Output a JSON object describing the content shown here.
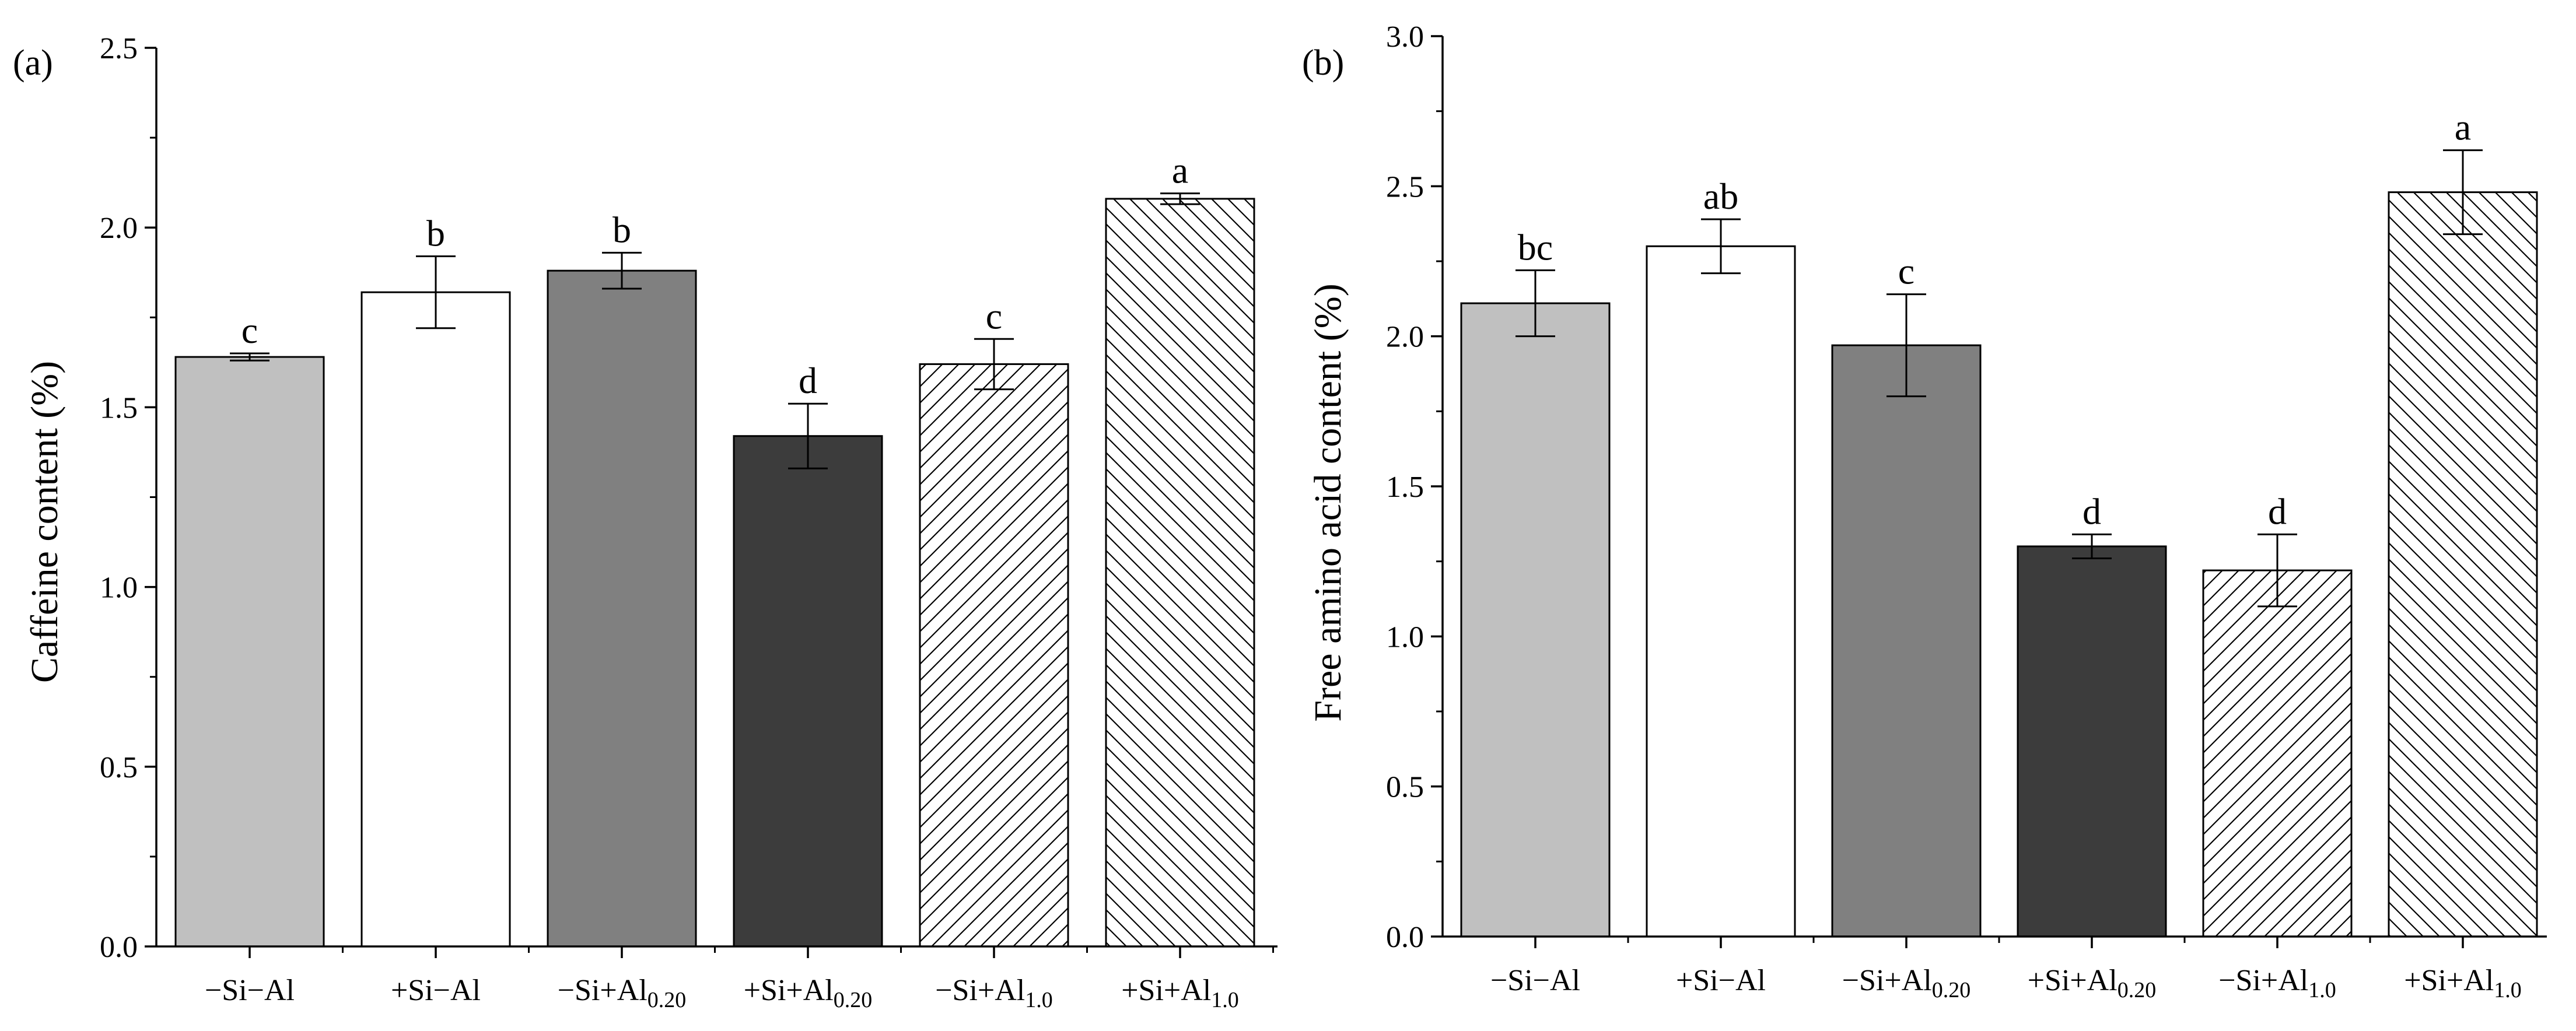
{
  "chart_data": [
    {
      "type": "bar",
      "panel_label": "(a)",
      "title": "",
      "xlabel": "",
      "ylabel": "Caffeine content (%)",
      "ylim": [
        0,
        2.5
      ],
      "y_major_ticks": [
        0.0,
        0.5,
        1.0,
        1.5,
        2.0,
        2.5
      ],
      "y_tick_labels": [
        "0.0",
        "0.5",
        "1.0",
        "1.5",
        "2.0",
        "2.5"
      ],
      "categories": [
        {
          "base": "−Si−Al",
          "sub": ""
        },
        {
          "base": "+Si−Al",
          "sub": ""
        },
        {
          "base": "−Si+Al",
          "sub": "0.20"
        },
        {
          "base": "+Si+Al",
          "sub": "0.20"
        },
        {
          "base": "−Si+Al",
          "sub": "1.0"
        },
        {
          "base": "+Si+Al",
          "sub": "1.0"
        }
      ],
      "values": [
        1.64,
        1.82,
        1.88,
        1.42,
        1.62,
        2.08
      ],
      "errors": [
        0.01,
        0.1,
        0.05,
        0.09,
        0.07,
        0.015
      ],
      "significance": [
        "c",
        "b",
        "b",
        "d",
        "c",
        "a"
      ]
    },
    {
      "type": "bar",
      "panel_label": "(b)",
      "title": "",
      "xlabel": "",
      "ylabel": "Free amino acid content (%)",
      "ylim": [
        0,
        3.0
      ],
      "y_major_ticks": [
        0.0,
        0.5,
        1.0,
        1.5,
        2.0,
        2.5,
        3.0
      ],
      "y_tick_labels": [
        "0.0",
        "0.5",
        "1.0",
        "1.5",
        "2.0",
        "2.5",
        "3.0"
      ],
      "categories": [
        {
          "base": "−Si−Al",
          "sub": ""
        },
        {
          "base": "+Si−Al",
          "sub": ""
        },
        {
          "base": "−Si+Al",
          "sub": "0.20"
        },
        {
          "base": "+Si+Al",
          "sub": "0.20"
        },
        {
          "base": "−Si+Al",
          "sub": "1.0"
        },
        {
          "base": "+Si+Al",
          "sub": "1.0"
        }
      ],
      "values": [
        2.11,
        2.3,
        1.97,
        1.3,
        1.22,
        2.48
      ],
      "errors": [
        0.11,
        0.09,
        0.17,
        0.04,
        0.12,
        0.14
      ],
      "significance": [
        "bc",
        "ab",
        "c",
        "d",
        "d",
        "a"
      ]
    }
  ],
  "styles": {
    "bar_fills": [
      "#c0c0c0",
      "#ffffff",
      "#808080",
      "#3c3c3c",
      "hatch-forward",
      "hatch-back"
    ],
    "bar_stroke": "#000000",
    "hatch_color": "#000000"
  }
}
